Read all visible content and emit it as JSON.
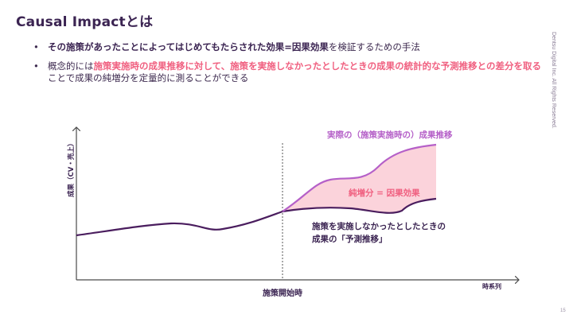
{
  "slide": {
    "title": "Causal Impactとは",
    "sidebar_text": "Dentsu Digital Inc. All Rights Reserved.",
    "page_number": "15"
  },
  "bullets": [
    {
      "segments": [
        {
          "text": "その施策があったことによってはじめてもたらされた効果=因果効果",
          "style": "bold"
        },
        {
          "text": "を検証するための手法",
          "style": "normal"
        }
      ]
    },
    {
      "segments": [
        {
          "text": "概念的には",
          "style": "normal"
        },
        {
          "text": "施策実施時の成果推移に対して、施策を実施しなかったとしたときの成果の統計的な予測推移との差分を取る",
          "style": "pink"
        },
        {
          "text": "ことで成果の純増分を定量的に測ることができる",
          "style": "normal"
        }
      ]
    }
  ],
  "diagram": {
    "y_axis_label": "成果（CV・売上）",
    "x_axis_label": "時系列",
    "intervention_label": "施策開始時",
    "actual_label": "実際の（施策実施時の）成果推移",
    "increment_label": "純増分 = 因果効果",
    "counterfactual_label_line1": "施策を実施しなかったとしたときの",
    "counterfactual_label_line2": "成果の「予測推移」",
    "colors": {
      "actual": "#b560c8",
      "counterfactual": "#4a1d5e",
      "increment_fill": "#fbd3db",
      "pink_text": "#f06080",
      "axis": "#4a4a4a"
    }
  }
}
